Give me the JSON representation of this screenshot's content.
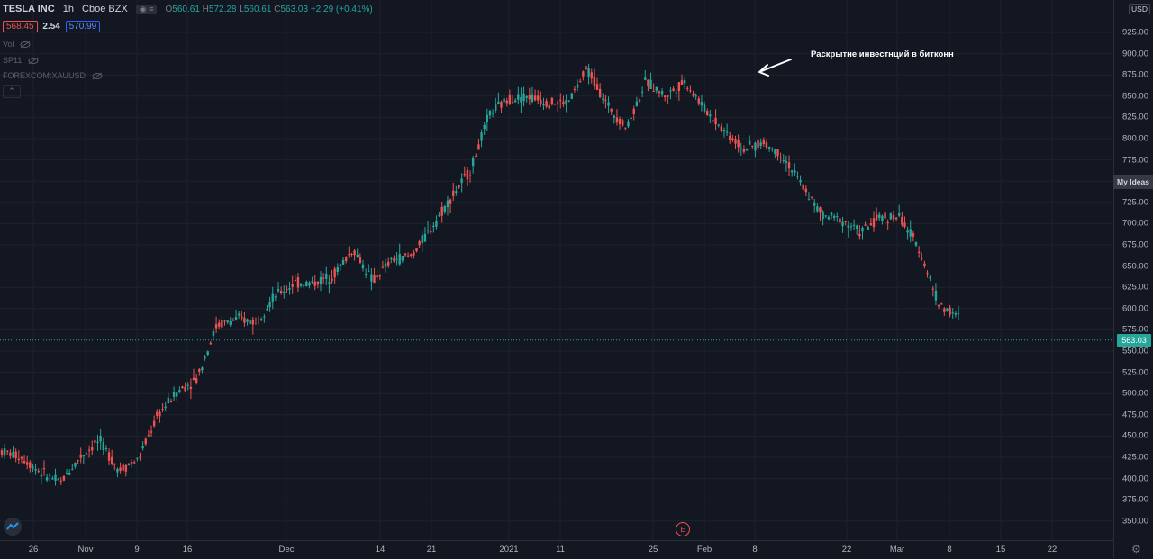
{
  "header": {
    "symbol": "TESLA INC",
    "interval": "1h",
    "exchange": "Cboe BZX",
    "open_label": "O",
    "open": "560.61",
    "high_label": "H",
    "high": "572.28",
    "low_label": "L",
    "low": "560.61",
    "close_label": "C",
    "close": "563.03",
    "change": "+2.29 (+0.41%)"
  },
  "quote": {
    "bid": "568.45",
    "spread": "2.54",
    "ask": "570.99"
  },
  "indicators": [
    {
      "label": "Vol"
    },
    {
      "label": "SP11"
    },
    {
      "label": "FOREXCOM:XAUUSD"
    }
  ],
  "currency": "USD",
  "my_ideas_label": "My Ideas",
  "last_price_label": "563.03",
  "annotation_text": "Раскрытне инвестнций в битконн",
  "earnings_marker": "E",
  "colors": {
    "up": "#26a69a",
    "down": "#ef5350",
    "background": "#131722",
    "grid": "#1e222d"
  },
  "chart_data": {
    "type": "candlestick",
    "ylim": [
      335,
      935
    ],
    "y_ticks": [
      350,
      375,
      400,
      425,
      450,
      475,
      500,
      525,
      550,
      575,
      600,
      625,
      650,
      675,
      700,
      725,
      750,
      775,
      800,
      825,
      850,
      875,
      900,
      925
    ],
    "x_ticks": [
      "26",
      "Nov",
      "9",
      "16",
      "Dec",
      "14",
      "21",
      "2021",
      "11",
      "25",
      "Feb",
      "8",
      "22",
      "Mar",
      "8",
      "15",
      "22"
    ],
    "last_price": 563.03,
    "trend_points": [
      [
        425,
        440
      ],
      [
        430,
        420
      ],
      [
        415,
        400
      ],
      [
        385,
        405
      ],
      [
        420,
        430
      ],
      [
        445,
        445
      ],
      [
        405,
        415
      ],
      [
        405,
        440
      ],
      [
        445,
        505
      ],
      [
        495,
        510
      ],
      [
        505,
        530
      ],
      [
        560,
        600
      ],
      [
        600,
        575
      ],
      [
        570,
        600
      ],
      [
        590,
        640
      ],
      [
        650,
        610
      ],
      [
        620,
        640
      ],
      [
        620,
        660
      ],
      [
        655,
        685
      ],
      [
        650,
        615
      ],
      [
        650,
        665
      ],
      [
        665,
        660
      ],
      [
        675,
        715
      ],
      [
        730,
        730
      ],
      [
        745,
        780
      ],
      [
        790,
        870
      ],
      [
        870,
        825
      ],
      [
        845,
        855
      ],
      [
        845,
        840
      ],
      [
        850,
        835
      ],
      [
        875,
        890
      ],
      [
        870,
        810
      ],
      [
        830,
        795
      ],
      [
        860,
        875
      ],
      [
        860,
        840
      ],
      [
        860,
        875
      ],
      [
        850,
        820
      ],
      [
        815,
        805
      ],
      [
        800,
        775
      ],
      [
        790,
        800
      ],
      [
        790,
        770
      ],
      [
        760,
        730
      ],
      [
        700,
        720
      ],
      [
        720,
        690
      ],
      [
        680,
        700
      ],
      [
        700,
        715
      ],
      [
        715,
        700
      ],
      [
        690,
        650
      ],
      [
        640,
        570
      ],
      [
        620,
        560
      ]
    ]
  }
}
